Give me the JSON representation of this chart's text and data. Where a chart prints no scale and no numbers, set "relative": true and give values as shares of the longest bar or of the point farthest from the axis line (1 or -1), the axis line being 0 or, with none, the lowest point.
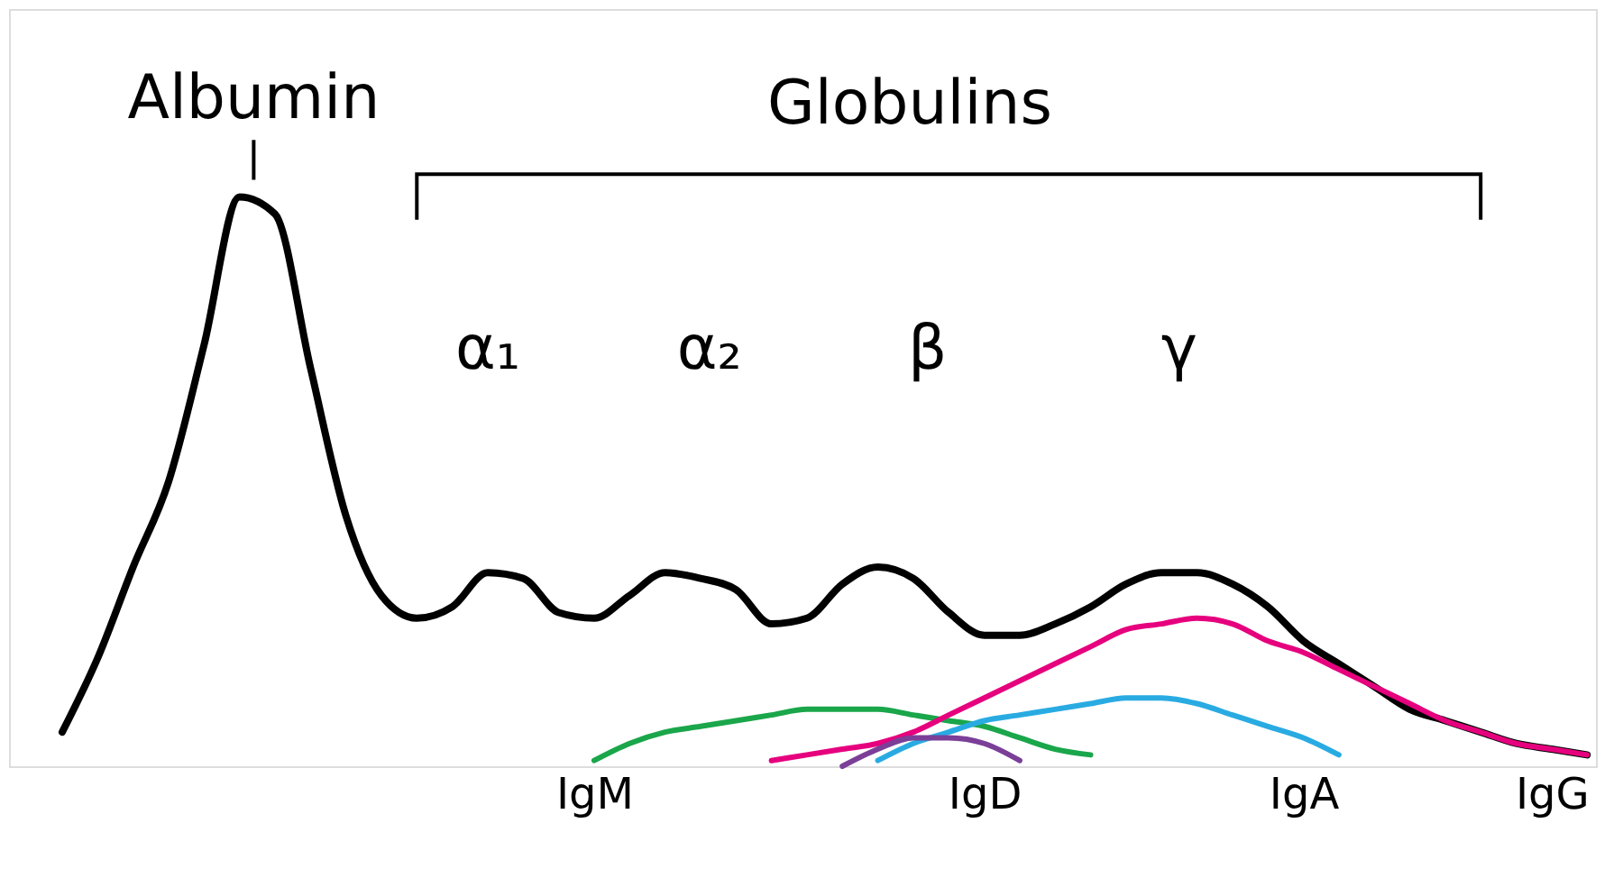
{
  "chart_data": {
    "type": "line",
    "relative": true,
    "categories": [
      null,
      null,
      null,
      null,
      null,
      null,
      null,
      null,
      null,
      null,
      null,
      null,
      null,
      null,
      null,
      null,
      "IgM",
      null,
      null,
      null,
      null,
      null,
      null,
      null,
      null,
      null,
      null,
      "IgD",
      null,
      null,
      null,
      null,
      null,
      null,
      null,
      null,
      "IgA",
      null,
      null,
      null,
      null,
      null,
      null,
      "IgG",
      null
    ],
    "grid": false,
    "marker": "none",
    "line_style": "solid",
    "annotations": [
      "Albumin",
      "Globulins",
      "α₁",
      "α₂",
      "β",
      "γ"
    ],
    "series": [
      {
        "color": "#000000",
        "values": [
          null,
          0.06,
          0.19,
          0.35,
          0.5,
          0.74,
          1.0,
          0.97,
          0.7,
          0.44,
          0.3,
          0.26,
          0.28,
          0.34,
          0.33,
          0.27,
          0.26,
          0.3,
          0.34,
          0.33,
          0.31,
          0.25,
          0.26,
          0.32,
          0.35,
          0.33,
          0.27,
          0.23,
          0.23,
          0.25,
          0.28,
          0.32,
          0.34,
          0.34,
          0.32,
          0.28,
          0.22,
          0.18,
          0.14,
          0.1,
          0.08,
          0.06,
          0.04,
          0.03,
          0.02
        ]
      },
      {
        "color": "#1aa64a",
        "values": [
          null,
          null,
          null,
          null,
          null,
          null,
          null,
          null,
          null,
          null,
          null,
          null,
          null,
          null,
          null,
          null,
          0.01,
          0.04,
          0.06,
          0.07,
          0.08,
          0.09,
          0.1,
          0.1,
          0.1,
          0.09,
          0.08,
          0.07,
          0.05,
          0.03,
          0.02,
          null,
          null,
          null,
          null,
          null,
          null,
          null,
          null,
          null,
          null,
          null,
          null,
          null,
          null
        ]
      },
      {
        "color": "#e6007e",
        "values": [
          null,
          null,
          null,
          null,
          null,
          null,
          null,
          null,
          null,
          null,
          null,
          null,
          null,
          null,
          null,
          null,
          null,
          null,
          null,
          null,
          null,
          0.01,
          0.02,
          0.03,
          0.04,
          0.06,
          0.09,
          0.12,
          0.15,
          0.18,
          0.21,
          0.24,
          0.25,
          0.26,
          0.25,
          0.22,
          0.2,
          0.17,
          0.14,
          0.11,
          0.08,
          0.06,
          0.04,
          0.03,
          0.02
        ]
      },
      {
        "color": "#29abe2",
        "values": [
          null,
          null,
          null,
          null,
          null,
          null,
          null,
          null,
          null,
          null,
          null,
          null,
          null,
          null,
          null,
          null,
          null,
          null,
          null,
          null,
          null,
          null,
          null,
          null,
          0.01,
          0.04,
          0.06,
          0.08,
          0.09,
          0.1,
          0.11,
          0.12,
          0.12,
          0.11,
          0.09,
          0.07,
          0.05,
          0.02,
          null,
          null,
          null,
          null,
          null,
          null,
          null
        ]
      },
      {
        "color": "#7b3f98",
        "values": [
          null,
          null,
          null,
          null,
          null,
          null,
          null,
          null,
          null,
          null,
          null,
          null,
          null,
          null,
          null,
          null,
          null,
          null,
          null,
          null,
          null,
          null,
          null,
          0.0,
          0.03,
          0.05,
          0.05,
          0.04,
          0.01,
          null,
          null,
          null,
          null,
          null,
          null,
          null,
          null,
          null,
          null,
          null,
          null,
          null,
          null,
          null,
          null
        ]
      }
    ]
  }
}
